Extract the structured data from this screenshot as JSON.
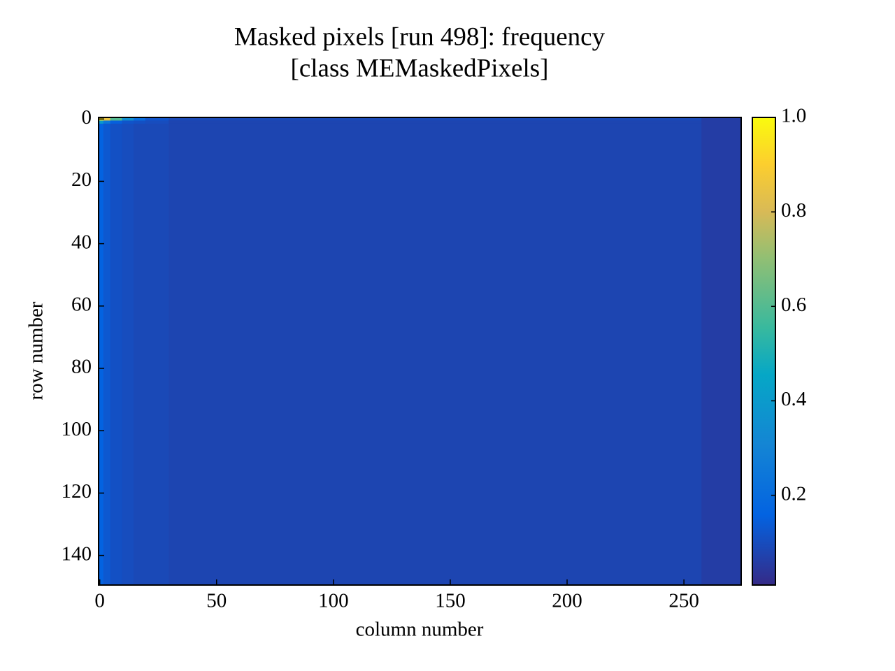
{
  "chart_data": {
    "type": "heatmap",
    "title": [
      "Masked pixels [run 498]: frequency",
      "[class MEMaskedPixels]"
    ],
    "xlabel": "column number",
    "ylabel": "row number",
    "xbins": [
      -0.5,
      1.5,
      4.5,
      9.5,
      14.5,
      19.5,
      29.5,
      257.5,
      274.5
    ],
    "ybins": [
      -0.5,
      0.5,
      1.5,
      149.5
    ],
    "values": [
      [
        0.95,
        0.85,
        0.6,
        0.35,
        0.2,
        0.12,
        0.09,
        0.06
      ],
      [
        0.4,
        0.25,
        0.15,
        0.12,
        0.11,
        0.1,
        0.08,
        0.06
      ],
      [
        0.16,
        0.13,
        0.11,
        0.1,
        0.09,
        0.09,
        0.08,
        0.06
      ]
    ],
    "xlim": [
      -0.5,
      274.5
    ],
    "ylim": [
      -0.5,
      149.5
    ],
    "xticks": [
      0,
      50,
      100,
      150,
      200,
      250
    ],
    "yticks": [
      0,
      20,
      40,
      60,
      80,
      100,
      120,
      140
    ],
    "colormap": "parula",
    "clim": [
      0.01,
      1.0
    ],
    "cticks": [
      0.2,
      0.4,
      0.6,
      0.8,
      {
        "value": 1,
        "label": "1.0"
      }
    ]
  }
}
